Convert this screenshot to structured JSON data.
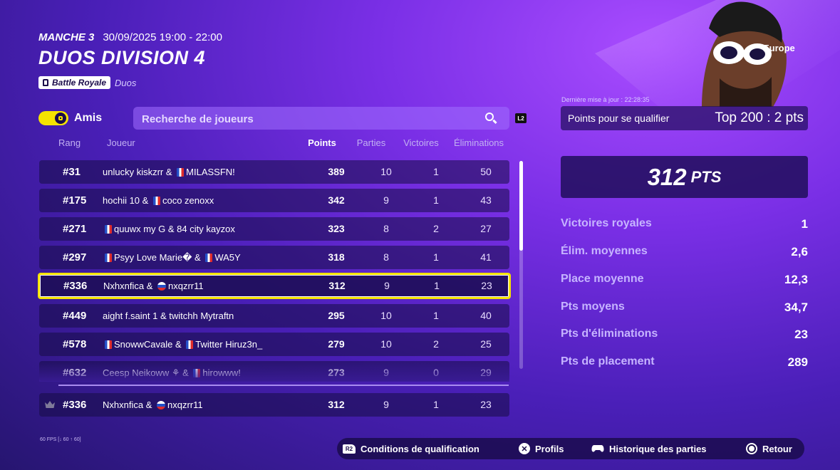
{
  "header": {
    "round": "MANCHE 3",
    "date": "30/09/2025 19:00 - 22:00",
    "title": "DUOS DIVISION 4",
    "mode_badge": "Battle Royale",
    "mode_sub": "Duos"
  },
  "controls": {
    "friends_label": "Amis",
    "search_placeholder": "Recherche de joueurs",
    "trigger_hint": "L2"
  },
  "table": {
    "headers": {
      "rank": "Rang",
      "player": "Joueur",
      "points": "Points",
      "matches": "Parties",
      "wins": "Victoires",
      "elims": "Éliminations"
    },
    "rows": [
      {
        "rank": "#31",
        "p1": "unlucky kiskzrr",
        "p1_flag": "",
        "p2": "MILASSFN!",
        "p2_flag": "fr",
        "points": "389",
        "matches": "10",
        "wins": "1",
        "elims": "50"
      },
      {
        "rank": "#175",
        "p1": "hochii 10",
        "p1_flag": "",
        "p2": "coco zenoxx",
        "p2_flag": "fr",
        "points": "342",
        "matches": "9",
        "wins": "1",
        "elims": "43"
      },
      {
        "rank": "#271",
        "p1": "quuwx my G",
        "p1_flag": "fr",
        "p2": "84 city kayzox",
        "p2_flag": "",
        "points": "323",
        "matches": "8",
        "wins": "2",
        "elims": "27"
      },
      {
        "rank": "#297",
        "p1": "Psyy Love Marie�",
        "p1_flag": "fr",
        "p2": "WA5Y",
        "p2_flag": "fr",
        "points": "318",
        "matches": "8",
        "wins": "1",
        "elims": "41"
      },
      {
        "rank": "#336",
        "p1": "Nxhxnfica",
        "p1_flag": "",
        "p2": "nxqzrr11",
        "p2_flag": "ru",
        "points": "312",
        "matches": "9",
        "wins": "1",
        "elims": "23",
        "highlight": true
      },
      {
        "rank": "#449",
        "p1": "aight f.saint 1",
        "p1_flag": "",
        "p2": "twitchh Mytraftn",
        "p2_flag": "",
        "points": "295",
        "matches": "10",
        "wins": "1",
        "elims": "40"
      },
      {
        "rank": "#578",
        "p1": "SnowwCavale",
        "p1_flag": "fr",
        "p2": "Twitter Hiruz3n_",
        "p2_flag": "fr",
        "points": "279",
        "matches": "10",
        "wins": "2",
        "elims": "25"
      },
      {
        "rank": "#632",
        "p1": "Ceesp Neikoww ⚘",
        "p1_flag": "",
        "p2": "hirowww!",
        "p2_flag": "fr",
        "points": "273",
        "matches": "9",
        "wins": "0",
        "elims": "29"
      }
    ],
    "own_row": {
      "rank": "#336",
      "p1": "Nxhxnfica",
      "p1_flag": "",
      "p2": "nxqzrr11",
      "p2_flag": "ru",
      "points": "312",
      "matches": "9",
      "wins": "1",
      "elims": "23"
    },
    "joiner": "&"
  },
  "side": {
    "region": "Europe",
    "last_update": "Dernière mise à jour : 22:28:35",
    "qualify_label": "Points pour se qualifier",
    "qualify_value": "Top 200 : 2 pts",
    "total_points": "312",
    "total_unit": "PTS",
    "stats": [
      {
        "label": "Victoires royales",
        "value": "1"
      },
      {
        "label": "Élim. moyennes",
        "value": "2,6"
      },
      {
        "label": "Place moyenne",
        "value": "12,3"
      },
      {
        "label": "Pts moyens",
        "value": "34,7"
      },
      {
        "label": "Pts d'éliminations",
        "value": "23"
      },
      {
        "label": "Pts de placement",
        "value": "289"
      }
    ]
  },
  "fps": "60 FPS [↓ 60 ↑ 60]",
  "footer": {
    "qualif_key": "R2",
    "qualif_label": "Conditions de qualification",
    "profiles_label": "Profils",
    "history_label": "Historique des parties",
    "back_label": "Retour"
  },
  "colors": {
    "accent": "#f5e300",
    "panel": "#200e5a"
  },
  "icons": [
    "battle-royale-icon",
    "search-icon",
    "crown-icon",
    "cross-button-icon",
    "gamepad-icon",
    "circle-button-icon",
    "france-flag-icon",
    "russia-flag-icon"
  ]
}
